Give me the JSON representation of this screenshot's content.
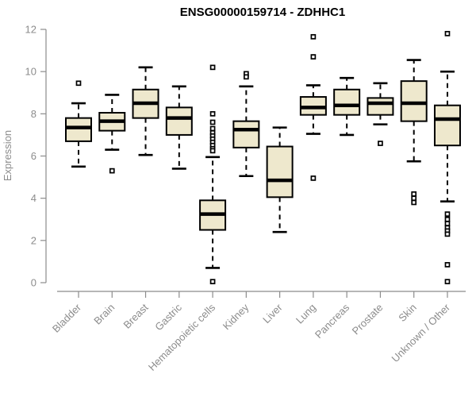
{
  "title": "ENSG00000159714 - ZDHHC1",
  "chart_data": {
    "type": "boxplot",
    "title": "ENSG00000159714 - ZDHHC1",
    "xlabel": "",
    "ylabel": "Expression",
    "ylim": [
      0,
      12
    ],
    "yticks": [
      0,
      2,
      4,
      6,
      8,
      10,
      12
    ],
    "grid": false,
    "legend": false,
    "categories": [
      "Bladder",
      "Brain",
      "Breast",
      "Gastric",
      "Hematopoietic cells",
      "Kidney",
      "Liver",
      "Lung",
      "Pancreas",
      "Prostate",
      "Skin",
      "Unknown / Other"
    ],
    "series": [
      {
        "category": "Bladder",
        "whisker_low": 5.5,
        "q1": 6.7,
        "median": 7.35,
        "q3": 7.8,
        "whisker_high": 8.5,
        "outliers": [
          9.45
        ]
      },
      {
        "category": "Brain",
        "whisker_low": 6.3,
        "q1": 7.2,
        "median": 7.65,
        "q3": 8.05,
        "whisker_high": 8.9,
        "outliers": [
          5.3
        ]
      },
      {
        "category": "Breast",
        "whisker_low": 6.05,
        "q1": 7.8,
        "median": 8.5,
        "q3": 9.15,
        "whisker_high": 10.2,
        "outliers": []
      },
      {
        "category": "Gastric",
        "whisker_low": 5.4,
        "q1": 7.0,
        "median": 7.8,
        "q3": 8.3,
        "whisker_high": 9.3,
        "outliers": []
      },
      {
        "category": "Hematopoietic cells",
        "whisker_low": 0.7,
        "q1": 2.5,
        "median": 3.25,
        "q3": 3.9,
        "whisker_high": 5.95,
        "outliers": [
          10.2,
          8.0,
          7.6,
          7.3,
          7.1,
          6.95,
          6.8,
          6.65,
          6.5,
          6.35,
          6.25,
          0.05
        ]
      },
      {
        "category": "Kidney",
        "whisker_low": 5.05,
        "q1": 6.4,
        "median": 7.25,
        "q3": 7.65,
        "whisker_high": 9.3,
        "outliers": [
          9.9,
          9.75
        ]
      },
      {
        "category": "Liver",
        "whisker_low": 2.4,
        "q1": 4.05,
        "median": 4.85,
        "q3": 6.45,
        "whisker_high": 7.35,
        "outliers": []
      },
      {
        "category": "Lung",
        "whisker_low": 7.05,
        "q1": 7.95,
        "median": 8.3,
        "q3": 8.8,
        "whisker_high": 9.35,
        "outliers": [
          11.65,
          10.7,
          4.95
        ]
      },
      {
        "category": "Pancreas",
        "whisker_low": 7.0,
        "q1": 7.95,
        "median": 8.4,
        "q3": 9.15,
        "whisker_high": 9.7,
        "outliers": []
      },
      {
        "category": "Prostate",
        "whisker_low": 7.5,
        "q1": 7.95,
        "median": 8.5,
        "q3": 8.75,
        "whisker_high": 9.45,
        "outliers": [
          6.6
        ]
      },
      {
        "category": "Skin",
        "whisker_low": 5.75,
        "q1": 7.65,
        "median": 8.5,
        "q3": 9.55,
        "whisker_high": 10.55,
        "outliers": [
          4.2,
          4.0,
          3.8
        ]
      },
      {
        "category": "Unknown / Other",
        "whisker_low": 3.85,
        "q1": 6.5,
        "median": 7.75,
        "q3": 8.4,
        "whisker_high": 10.0,
        "outliers": [
          11.8,
          3.25,
          3.0,
          2.8,
          2.6,
          2.45,
          2.3,
          0.85,
          0.05
        ]
      }
    ],
    "colors": {
      "box_fill": "#EEE8CD",
      "box_stroke": "#000000",
      "median": "#000000",
      "whisker": "#000000",
      "outlier": "#000000",
      "axis": "#8C8C8C",
      "tick_label": "#8C8C8C",
      "title": "#000000"
    }
  }
}
